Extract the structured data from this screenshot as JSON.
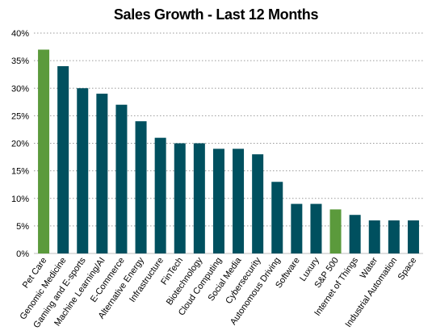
{
  "chart_data": {
    "type": "bar",
    "title": "Sales Growth - Last 12 Months",
    "xlabel": "",
    "ylabel": "",
    "ylim": [
      0,
      40
    ],
    "yticks": [
      "0%",
      "5%",
      "10%",
      "15%",
      "20%",
      "25%",
      "30%",
      "35%",
      "40%"
    ],
    "grid": true,
    "legend": "none",
    "categories": [
      "Pet Care",
      "Genomic Medicine",
      "Gaming and E-sports",
      "Machine Learning/AI",
      "E-Commerce",
      "Alternative Energy",
      "Infrastructure",
      "FinTech",
      "Biotechnology",
      "Cloud Computing",
      "Social Media",
      "Cybersecurity",
      "Autonomous Driving",
      "Software",
      "Luxury",
      "S&P 500",
      "Internet of Things",
      "Water",
      "Industrial Automation",
      "Space"
    ],
    "values": [
      37,
      34,
      30,
      29,
      27,
      24,
      21,
      20,
      20,
      19,
      19,
      18,
      13,
      9,
      9,
      8,
      7,
      6,
      6,
      6
    ],
    "highlighted": [
      "Pet Care",
      "S&P 500"
    ],
    "colors": {
      "default": "#00505f",
      "highlight": "#5b9a3c",
      "grid": "#9a9a9a"
    }
  }
}
